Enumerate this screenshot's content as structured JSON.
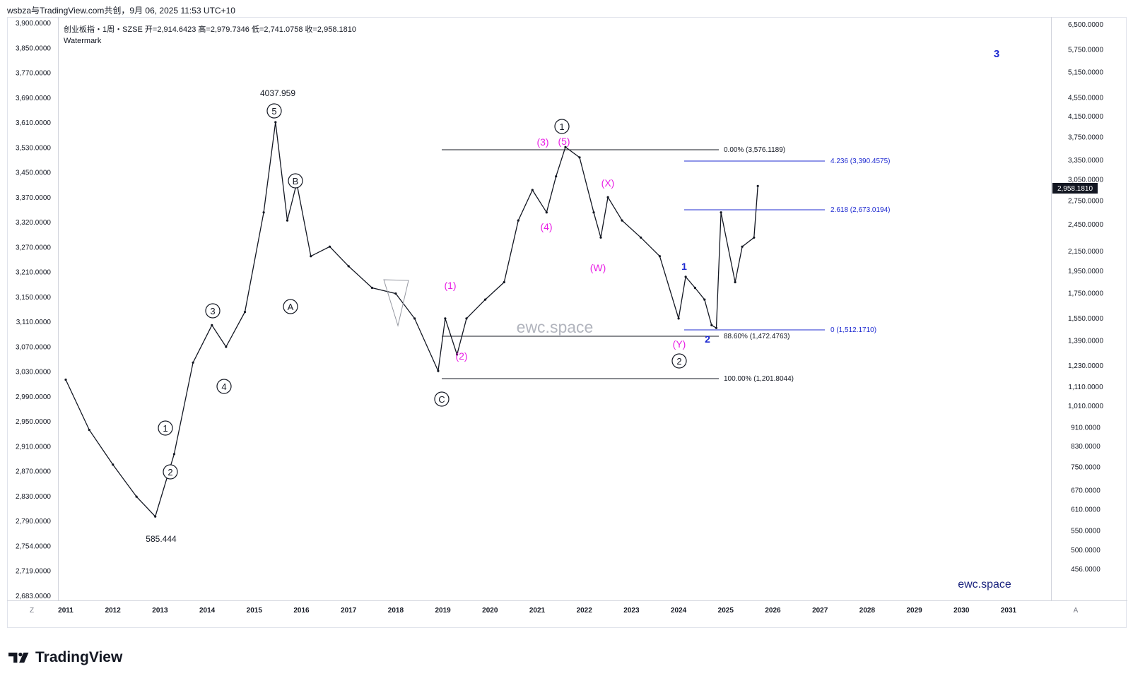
{
  "header": {
    "top_line": "wsbza与TradingView.com共创，9月 06, 2025 11:53 UTC+10",
    "legend": "创业板指・1周・SZSE  开=2,914.6423  高=2,979.7346  低=2,741.0758  收=2,958.1810",
    "watermark_label": "Watermark"
  },
  "left_axis_ticks": [
    "3,900.0000",
    "3,850.0000",
    "3,770.0000",
    "3,690.0000",
    "3,610.0000",
    "3,530.0000",
    "3,450.0000",
    "3,370.0000",
    "3,320.0000",
    "3,270.0000",
    "3,210.0000",
    "3,150.0000",
    "3,110.0000",
    "3,070.0000",
    "3,030.0000",
    "2,990.0000",
    "2,950.0000",
    "2,910.0000",
    "2,870.0000",
    "2,830.0000",
    "2,790.0000",
    "2,754.0000",
    "2,719.0000",
    "2,683.0000"
  ],
  "right_axis_ticks": [
    "6,500.0000",
    "5,750.0000",
    "5,150.0000",
    "4,550.0000",
    "4,150.0000",
    "3,750.0000",
    "3,350.0000",
    "3,050.0000",
    "2,750.0000",
    "2,450.0000",
    "2,150.0000",
    "1,950.0000",
    "1,750.0000",
    "1,550.0000",
    "1,390.0000",
    "1,230.0000",
    "1,110.0000",
    "1,010.0000",
    "910.0000",
    "830.0000",
    "750.0000",
    "670.0000",
    "610.0000",
    "550.0000",
    "500.0000",
    "456.0000"
  ],
  "x_axis_years": [
    "2011",
    "2012",
    "2013",
    "2014",
    "2015",
    "2016",
    "2017",
    "2018",
    "2019",
    "2020",
    "2021",
    "2022",
    "2023",
    "2024",
    "2025",
    "2026",
    "2027",
    "2028",
    "2029",
    "2030",
    "2031"
  ],
  "price_badge": "2,958.1810",
  "axis_corner_left": "Z",
  "axis_corner_right": "A",
  "price_labels": {
    "peak": "4037.959",
    "low": "585.444"
  },
  "watermark_center": "ewc.space",
  "watermark_corner": "ewc.space",
  "fib_levels": [
    {
      "text": "0.00% (3,576.1189)",
      "color": "#131722"
    },
    {
      "text": "4.236 (3,390.4575)",
      "color": "#1f2bd1"
    },
    {
      "text": "2.618 (2,673.0194)",
      "color": "#1f2bd1"
    },
    {
      "text": "0 (1,512.1710)",
      "color": "#1f2bd1"
    },
    {
      "text": "88.60% (1,472.4763)",
      "color": "#131722"
    },
    {
      "text": "100.00% (1,201.8044)",
      "color": "#131722"
    }
  ],
  "wave_labels": {
    "circled": [
      "5",
      "B",
      "A",
      "3",
      "4",
      "1",
      "2",
      "C",
      "1",
      "2"
    ],
    "magenta": [
      "(1)",
      "(2)",
      "(3)",
      "(5)",
      "(4)",
      "(X)",
      "(W)",
      "(Y)"
    ],
    "blue": [
      "1",
      "2",
      "3"
    ]
  },
  "colors": {
    "candle": "#131722",
    "magenta": "#e91ee5",
    "blue": "#1f2bd1",
    "badge_bg": "#131722"
  },
  "footer": {
    "brand": "TradingView"
  },
  "chart_data": {
    "type": "line",
    "subtype": "weekly candlestick (OHLC) with Elliott-wave annotations",
    "title": "创业板指・1周・SZSE",
    "scale": "logarithmic",
    "x": [
      "2011",
      "2011.5",
      "2012",
      "2012.5",
      "2012.9",
      "2013.3",
      "2013.7",
      "2014.1",
      "2014.4",
      "2014.8",
      "2015.2",
      "2015.45",
      "2015.7",
      "2015.9",
      "2016.2",
      "2016.6",
      "2017.0",
      "2017.5",
      "2018.0",
      "2018.4",
      "2018.9",
      "2019.05",
      "2019.3",
      "2019.5",
      "2019.9",
      "2020.3",
      "2020.6",
      "2020.9",
      "2021.2",
      "2021.4",
      "2021.6",
      "2021.9",
      "2022.2",
      "2022.35",
      "2022.5",
      "2022.8",
      "2023.2",
      "2023.6",
      "2024.0",
      "2024.15",
      "2024.35",
      "2024.55",
      "2024.7",
      "2024.8",
      "2024.9",
      "2025.2",
      "2025.35",
      "2025.6",
      "2025.68"
    ],
    "series": [
      {
        "values": [
          1150,
          900,
          760,
          650,
          590,
          800,
          1250,
          1500,
          1350,
          1600,
          2600,
          4037,
          2500,
          3000,
          2100,
          2200,
          2000,
          1800,
          1750,
          1550,
          1200,
          1550,
          1300,
          1550,
          1700,
          1850,
          2500,
          2900,
          2600,
          3100,
          3576,
          3400,
          2600,
          2300,
          2800,
          2500,
          2300,
          2100,
          1550,
          1900,
          1800,
          1700,
          1500,
          1480,
          2600,
          1850,
          2200,
          2300,
          2958
        ]
      }
    ],
    "ylim": [
      400,
      6700
    ],
    "legend": "none",
    "grid": false,
    "annotations": [
      "4037.959",
      "585.444"
    ]
  }
}
